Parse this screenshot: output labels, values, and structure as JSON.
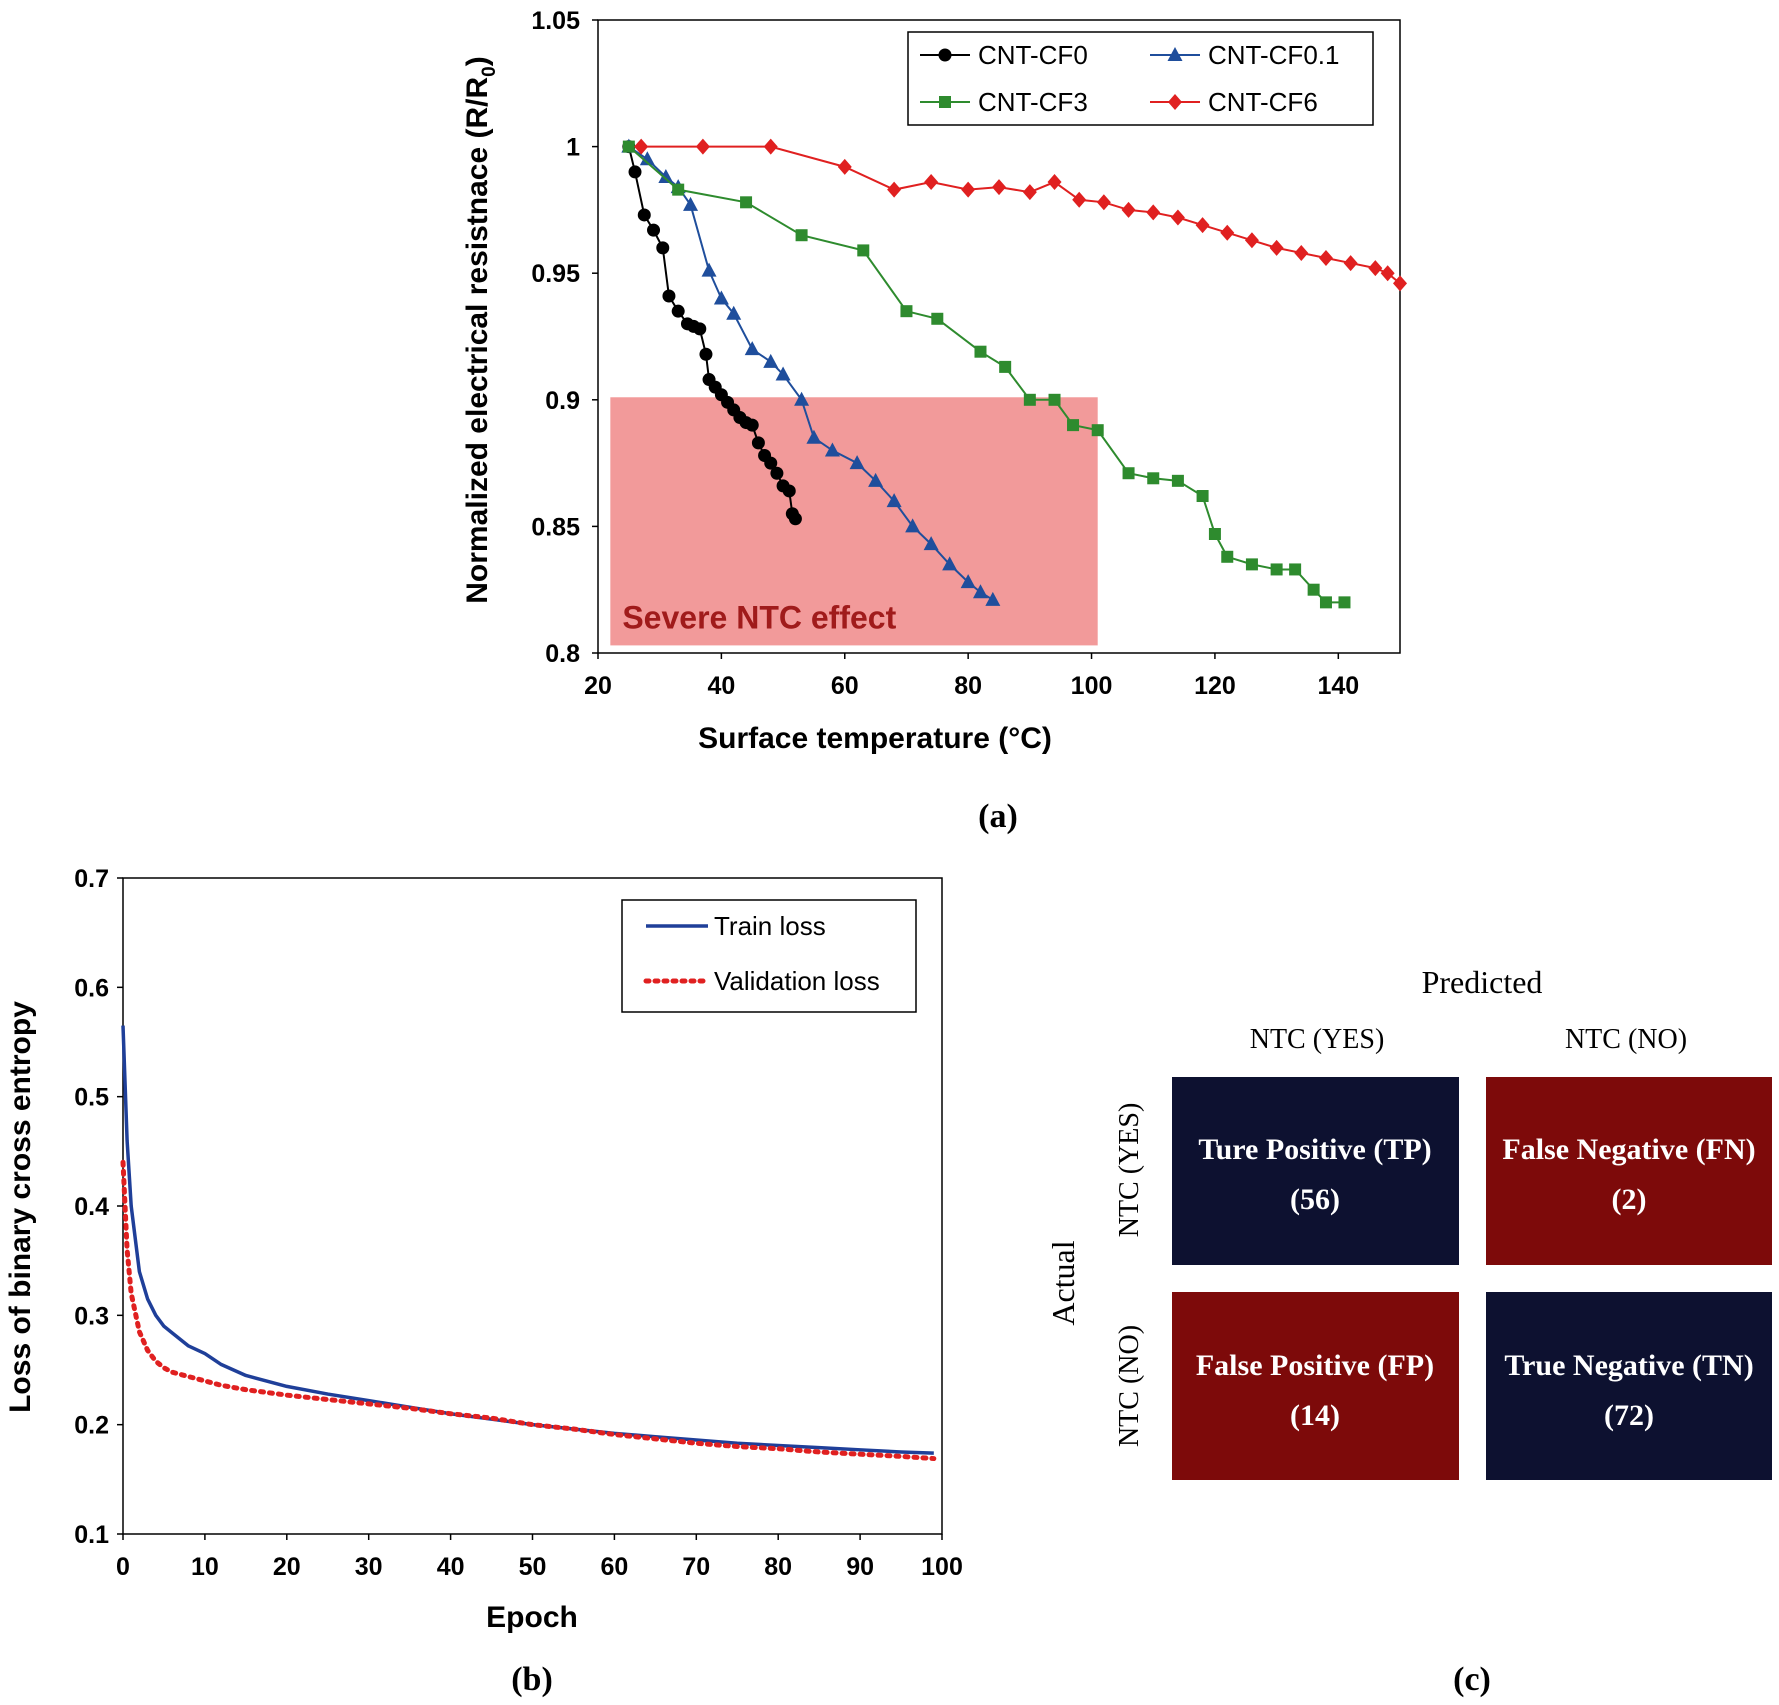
{
  "panel_a": {
    "label": "(a)",
    "ylabel_main": "Normalized  electrical resistnace  (R/R",
    "ylabel_sub": "0",
    "ylabel_close": ")",
    "shade_label": "Severe NTC effect",
    "shade_color": "#f29a9a",
    "shade_text_color": "#a01b1b"
  },
  "panel_b": {
    "label": "(b)"
  },
  "panel_c": {
    "label": "(c)",
    "predicted_label": "Predicted",
    "actual_label": "Actual",
    "col_headers": [
      "NTC (YES)",
      "NTC (NO)"
    ],
    "row_headers": [
      "NTC (YES)",
      "NTC (NO)"
    ],
    "cells": [
      {
        "name": "Ture Positive (TP)",
        "count": "(56)",
        "color": "#0d1130"
      },
      {
        "name": "False Negative (FN)",
        "count": "(2)",
        "color": "#7d0a0a"
      },
      {
        "name": "False Positive (FP)",
        "count": "(14)",
        "color": "#7d0a0a"
      },
      {
        "name": "True Negative (TN)",
        "count": "(72)",
        "color": "#0d1130"
      }
    ],
    "values": [
      [
        56,
        2
      ],
      [
        14,
        72
      ]
    ]
  },
  "chart_data": [
    {
      "type": "line",
      "title": "",
      "xlabel": "Surface temperature (°C)",
      "ylabel": "Normalized electrical resistnace (R/R0)",
      "xlim": [
        20,
        150
      ],
      "ylim": [
        0.8,
        1.05
      ],
      "xticks": [
        20,
        40,
        60,
        80,
        100,
        120,
        140
      ],
      "yticks": [
        0.8,
        0.85,
        0.9,
        0.95,
        1,
        1.05
      ],
      "ytick_labels": [
        "0.8",
        "0.85",
        "0.9",
        "0.95",
        "1",
        "1.05"
      ],
      "legend_position": "top-right",
      "shaded_region": {
        "label": "Severe NTC effect",
        "x": [
          22,
          101
        ],
        "y": [
          0.803,
          0.901
        ]
      },
      "series": [
        {
          "name": "CNT-CF0",
          "color": "#000000",
          "marker": "circle",
          "x": [
            25,
            26,
            27.5,
            29,
            30.5,
            31.5,
            33,
            34.5,
            35.5,
            36.5,
            37.5,
            38,
            39,
            40,
            41,
            42,
            43,
            44,
            45,
            46,
            47,
            48,
            49,
            50,
            51,
            51.5,
            52
          ],
          "y": [
            1.0,
            0.99,
            0.973,
            0.967,
            0.96,
            0.941,
            0.935,
            0.93,
            0.929,
            0.928,
            0.918,
            0.908,
            0.905,
            0.902,
            0.899,
            0.896,
            0.893,
            0.891,
            0.89,
            0.883,
            0.878,
            0.875,
            0.871,
            0.866,
            0.864,
            0.855,
            0.853
          ]
        },
        {
          "name": "CNT-CF0.1",
          "color": "#1f4e9c",
          "marker": "triangle",
          "x": [
            25,
            28,
            31,
            33,
            35,
            38,
            40,
            42,
            45,
            48,
            50,
            53,
            55,
            58,
            62,
            65,
            68,
            71,
            74,
            77,
            80,
            82,
            84
          ],
          "y": [
            1.0,
            0.995,
            0.988,
            0.984,
            0.977,
            0.951,
            0.94,
            0.934,
            0.92,
            0.915,
            0.91,
            0.9,
            0.885,
            0.88,
            0.875,
            0.868,
            0.86,
            0.85,
            0.843,
            0.835,
            0.828,
            0.824,
            0.821
          ]
        },
        {
          "name": "CNT-CF3",
          "color": "#2e8b2e",
          "marker": "square",
          "x": [
            25,
            33,
            44,
            53,
            63,
            70,
            75,
            82,
            86,
            90,
            94,
            97,
            101,
            106,
            110,
            114,
            118,
            120,
            122,
            126,
            130,
            133,
            136,
            138,
            141
          ],
          "y": [
            1.0,
            0.983,
            0.978,
            0.965,
            0.959,
            0.935,
            0.932,
            0.919,
            0.913,
            0.9,
            0.9,
            0.89,
            0.888,
            0.871,
            0.869,
            0.868,
            0.862,
            0.847,
            0.838,
            0.835,
            0.833,
            0.833,
            0.825,
            0.82,
            0.82
          ]
        },
        {
          "name": "CNT-CF6",
          "color": "#e02020",
          "marker": "diamond",
          "x": [
            27,
            37,
            48,
            60,
            68,
            74,
            80,
            85,
            90,
            94,
            98,
            102,
            106,
            110,
            114,
            118,
            122,
            126,
            130,
            134,
            138,
            142,
            146,
            148,
            150
          ],
          "y": [
            1.0,
            1.0,
            1.0,
            0.992,
            0.983,
            0.986,
            0.983,
            0.984,
            0.982,
            0.986,
            0.979,
            0.978,
            0.975,
            0.974,
            0.972,
            0.969,
            0.966,
            0.963,
            0.96,
            0.958,
            0.956,
            0.954,
            0.952,
            0.95,
            0.946
          ]
        }
      ]
    },
    {
      "type": "line",
      "title": "",
      "xlabel": "Epoch",
      "ylabel": "Loss of binary cross entropy",
      "xlim": [
        0,
        100
      ],
      "ylim": [
        0.1,
        0.7
      ],
      "xticks": [
        0,
        10,
        20,
        30,
        40,
        50,
        60,
        70,
        80,
        90,
        100
      ],
      "yticks": [
        0.1,
        0.2,
        0.3,
        0.4,
        0.5,
        0.6,
        0.7
      ],
      "legend_position": "top-right",
      "series": [
        {
          "name": "Train loss",
          "color": "#1f3f99",
          "style": "solid",
          "x": [
            0,
            0.5,
            1,
            2,
            3,
            4,
            5,
            6,
            8,
            10,
            12,
            15,
            20,
            25,
            30,
            35,
            40,
            45,
            50,
            55,
            60,
            65,
            70,
            75,
            80,
            85,
            90,
            95,
            99
          ],
          "y": [
            0.565,
            0.46,
            0.4,
            0.34,
            0.315,
            0.3,
            0.29,
            0.284,
            0.272,
            0.265,
            0.255,
            0.245,
            0.235,
            0.228,
            0.222,
            0.216,
            0.21,
            0.205,
            0.2,
            0.196,
            0.192,
            0.189,
            0.186,
            0.183,
            0.181,
            0.179,
            0.177,
            0.175,
            0.174
          ]
        },
        {
          "name": "Validation loss",
          "color": "#e02020",
          "style": "dotted",
          "x": [
            0,
            0.5,
            1,
            2,
            3,
            4,
            5,
            6,
            8,
            10,
            12,
            15,
            20,
            25,
            30,
            35,
            40,
            45,
            50,
            55,
            60,
            65,
            70,
            75,
            80,
            85,
            90,
            95,
            99
          ],
          "y": [
            0.44,
            0.36,
            0.32,
            0.285,
            0.268,
            0.258,
            0.252,
            0.248,
            0.244,
            0.24,
            0.236,
            0.232,
            0.227,
            0.223,
            0.219,
            0.215,
            0.21,
            0.206,
            0.2,
            0.196,
            0.191,
            0.187,
            0.183,
            0.18,
            0.178,
            0.175,
            0.173,
            0.171,
            0.169
          ]
        }
      ]
    }
  ]
}
